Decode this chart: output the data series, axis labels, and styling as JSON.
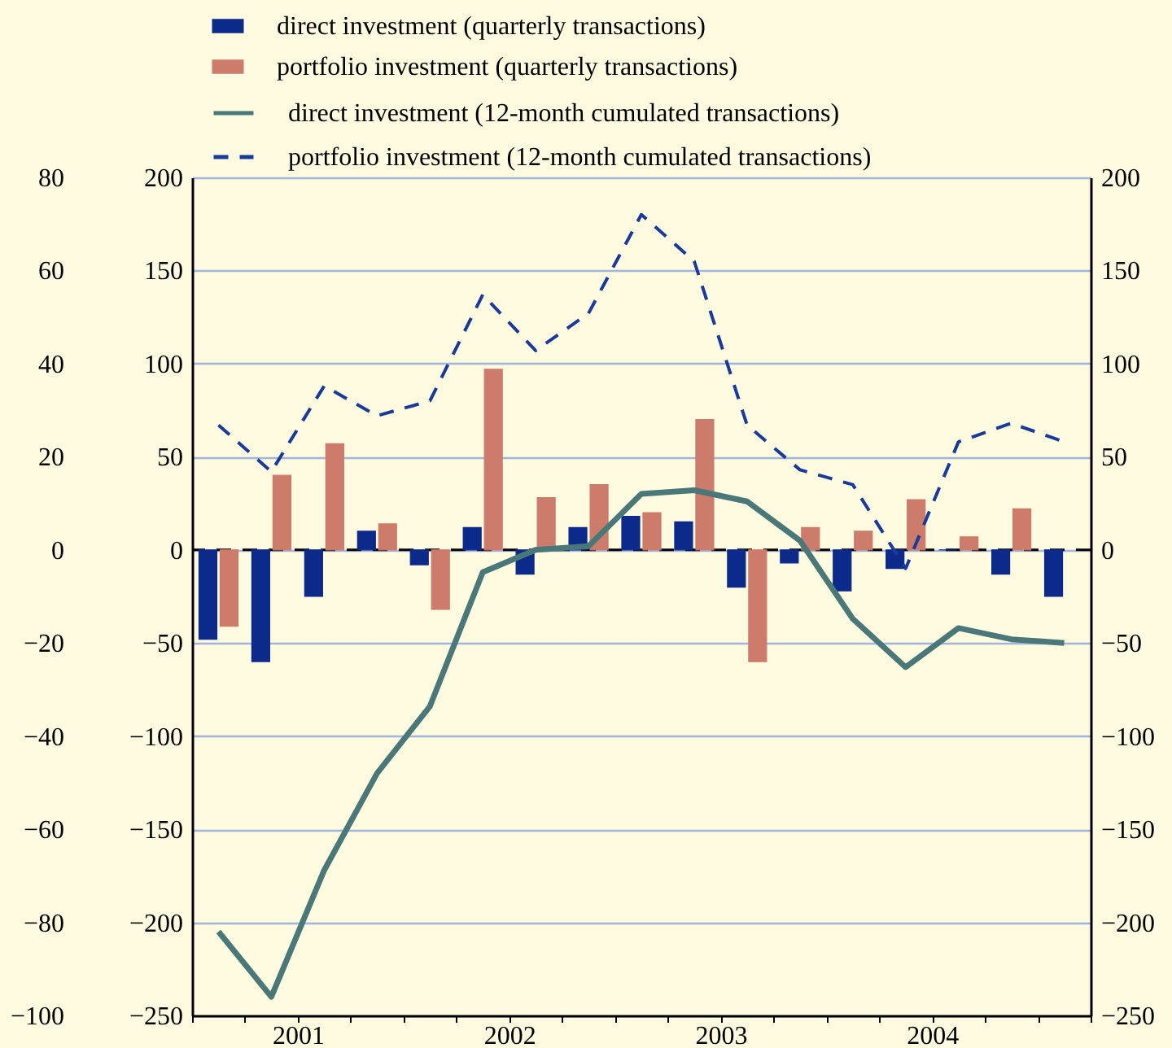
{
  "chart_data": {
    "type": "bar",
    "x": [
      2001.125,
      2001.375,
      2001.625,
      2001.875,
      2002.125,
      2002.375,
      2002.625,
      2002.875,
      2003.125,
      2003.375,
      2003.625,
      2003.875,
      2004.125,
      2004.375,
      2004.625,
      2004.875,
      2005.125
    ],
    "series": [
      {
        "name": "direct investment (quarterly transactions)",
        "color": "#0c2a8a",
        "values": [
          -48,
          -60,
          -25,
          10,
          -8,
          12,
          -13,
          12,
          18,
          15,
          -20,
          -7,
          -22,
          -10,
          0,
          -13,
          -25
        ]
      },
      {
        "name": "portfolio investment (quarterly transactions)",
        "color": "#cd7b6a",
        "values": [
          -41,
          40,
          57,
          14,
          -32,
          97,
          28,
          35,
          20,
          70,
          -60,
          12,
          10,
          27,
          7,
          22,
          null
        ]
      },
      {
        "name": "direct investment (12-month cumulated transactions)",
        "type": "line",
        "line_style": "solid",
        "color": "#4a7878",
        "values": [
          -205,
          -240,
          -172,
          -120,
          -84,
          -12,
          0,
          2,
          30,
          32,
          26,
          5,
          -37,
          -63,
          -42,
          -48,
          -50
        ]
      },
      {
        "name": "portfolio investment (12-month cumulated transactions)",
        "type": "line",
        "line_style": "dashed",
        "color": "#1a3a9a",
        "values": [
          67,
          42,
          88,
          72,
          80,
          137,
          107,
          127,
          180,
          155,
          67,
          43,
          35,
          -10,
          58,
          68,
          58
        ]
      }
    ],
    "xlim": [
      2001,
      2005.25
    ],
    "xticks": [
      {
        "value": 2001,
        "label": null
      },
      {
        "value": 2001.25,
        "label": null
      },
      {
        "value": 2001.5,
        "label": "2001"
      },
      {
        "value": 2001.75,
        "label": null
      },
      {
        "value": 2002,
        "label": null
      },
      {
        "value": 2002.25,
        "label": null
      },
      {
        "value": 2002.5,
        "label": "2002"
      },
      {
        "value": 2002.75,
        "label": null
      },
      {
        "value": 2003,
        "label": null
      },
      {
        "value": 2003.25,
        "label": null
      },
      {
        "value": 2003.5,
        "label": "2003"
      },
      {
        "value": 2003.75,
        "label": null
      },
      {
        "value": 2004,
        "label": null
      },
      {
        "value": 2004.25,
        "label": null
      },
      {
        "value": 2004.5,
        "label": "2004"
      },
      {
        "value": 2004.75,
        "label": null
      },
      {
        "value": 2005,
        "label": null
      },
      {
        "value": 2005.25,
        "label": null
      }
    ],
    "ylim": [
      -250,
      200
    ],
    "yticks": [
      -250,
      -200,
      -150,
      -100,
      -50,
      0,
      50,
      100,
      150,
      200
    ],
    "y2lim": [
      -250,
      200
    ],
    "y2ticks": [
      -250,
      -200,
      -150,
      -100,
      -50,
      0,
      50,
      100,
      150,
      200
    ],
    "y3lim": [
      -100,
      80
    ],
    "y3ticks": [
      -100,
      -80,
      -60,
      -40,
      -20,
      0,
      20,
      40,
      60,
      80
    ],
    "ref_lines": [
      {
        "axis": "y",
        "value": 0,
        "color": "#000000",
        "line_style": "dashed"
      }
    ],
    "grid": "y",
    "legend": "top"
  }
}
